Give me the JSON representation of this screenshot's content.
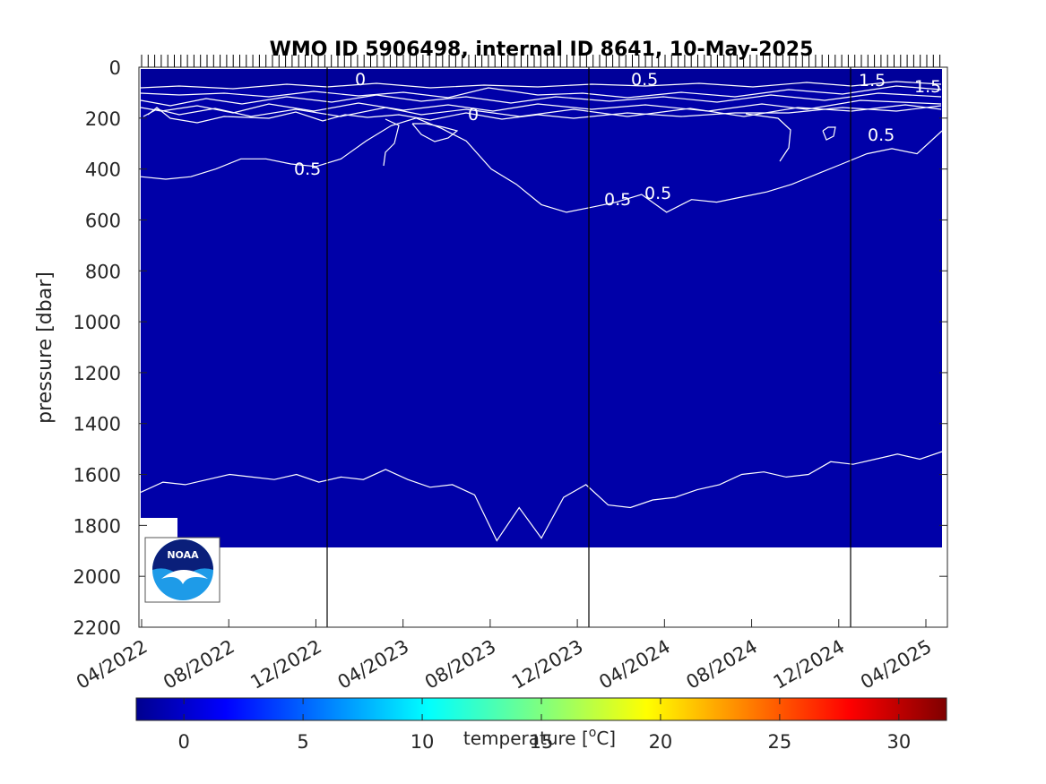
{
  "chart_data": {
    "type": "heatmap",
    "title": "WMO ID 5906498, internal ID 8641, 10-May-2025",
    "xlabel": "",
    "ylabel": "pressure [dbar]",
    "x_tick_labels": [
      "04/2022",
      "08/2022",
      "12/2022",
      "04/2023",
      "08/2023",
      "12/2023",
      "04/2024",
      "08/2024",
      "12/2024",
      "04/2025"
    ],
    "y_ticks": [
      0,
      200,
      400,
      600,
      800,
      1000,
      1200,
      1400,
      1600,
      1800,
      2000,
      2200
    ],
    "ylim": [
      2200,
      0
    ],
    "y_reversed": true,
    "max_profile_pressure": 1890,
    "year_boundaries": [
      "2023-01-01",
      "2024-01-01",
      "2025-01-01"
    ],
    "contour_labels": [
      "0",
      "0.5",
      "0",
      "0.5",
      "0.5",
      "0.5",
      "0.5",
      "1.5",
      "1.5"
    ],
    "contours": [
      {
        "level": 0.5,
        "pressure": [
          430,
          440,
          430,
          400,
          360,
          360,
          380,
          390,
          360,
          290,
          230,
          200,
          240,
          290,
          400,
          460,
          540,
          570,
          550,
          530,
          500,
          570,
          520,
          530,
          510,
          490,
          460,
          420,
          380,
          340,
          320,
          340,
          250
        ]
      },
      {
        "level": 0.0,
        "pressure": [
          1670,
          1630,
          1640,
          1620,
          1600,
          1610,
          1620,
          1600,
          1630,
          1610,
          1620,
          1580,
          1620,
          1650,
          1640,
          1680,
          1860,
          1730,
          1850,
          1690,
          1640,
          1720,
          1730,
          1700,
          1690,
          1660,
          1640,
          1600,
          1590,
          1610,
          1600,
          1550,
          1560,
          1540,
          1520,
          1540,
          1510
        ]
      }
    ],
    "field_value_deg_c": 0.3,
    "colorbar": {
      "label": "temperature [°C]",
      "label_prefix": "temperature [",
      "label_degree": "o",
      "label_suffix": "C]",
      "min": -2,
      "max": 32,
      "ticks": [
        "0",
        "5",
        "10",
        "15",
        "20",
        "25",
        "30"
      ],
      "colormap": "jet"
    }
  },
  "logo": {
    "text": "NOAA",
    "icon": "noaa-logo"
  },
  "colors": {
    "field": "#0000a8",
    "field_deep": "#00009a",
    "background": "#ffffff",
    "contour": "#ffffff"
  }
}
